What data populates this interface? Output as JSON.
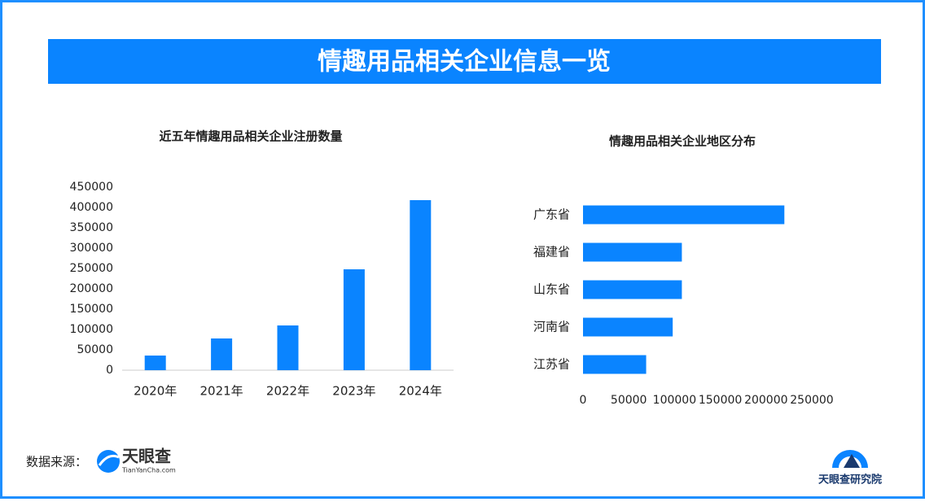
{
  "header": {
    "title": "情趣用品相关企业信息一览"
  },
  "chart_data": [
    {
      "type": "bar",
      "title": "近五年情趣用品相关企业注册数量",
      "categories": [
        "2020年",
        "2021年",
        "2022年",
        "2023年",
        "2024年"
      ],
      "values": [
        36000,
        78000,
        110000,
        248000,
        418000
      ],
      "color": "#0a84ff",
      "ylim": [
        0,
        450000
      ],
      "yticks": [
        0,
        50000,
        100000,
        150000,
        200000,
        250000,
        300000,
        350000,
        400000,
        450000
      ]
    },
    {
      "type": "barh",
      "title": "情趣用品相关企业地区分布",
      "categories": [
        "广东省",
        "福建省",
        "山东省",
        "河南省",
        "江苏省"
      ],
      "values": [
        220000,
        108000,
        108000,
        98000,
        69000
      ],
      "color": "#0a84ff",
      "xlim": [
        0,
        250000
      ],
      "xticks": [
        0,
        50000,
        100000,
        150000,
        200000,
        250000
      ]
    }
  ],
  "footer": {
    "source_label": "数据来源：",
    "logo_name": "天眼查",
    "logo_url": "TianYanCha.com",
    "institute": "天眼查研究院"
  }
}
